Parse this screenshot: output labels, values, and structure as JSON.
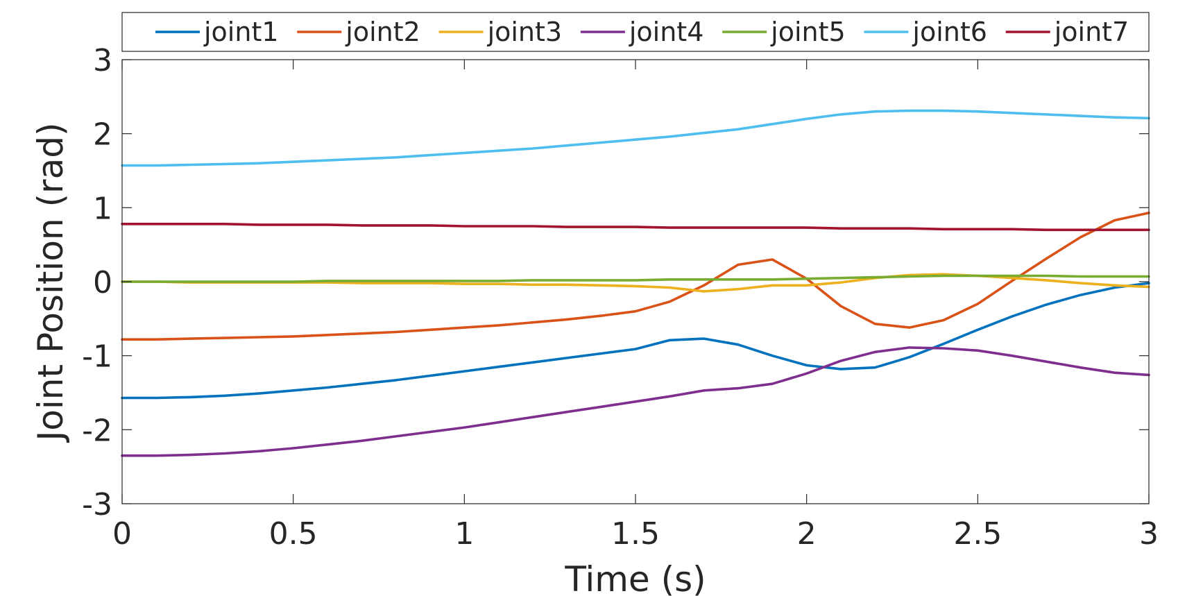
{
  "chart_data": {
    "type": "line",
    "title": "",
    "xlabel": "Time (s)",
    "ylabel": "Joint Position (rad)",
    "xlim": [
      0,
      3
    ],
    "ylim": [
      -3,
      3
    ],
    "xticks": [
      0,
      0.5,
      1,
      1.5,
      2,
      2.5,
      3
    ],
    "xtick_labels": [
      "0",
      "0.5",
      "1",
      "1.5",
      "2",
      "2.5",
      "3"
    ],
    "yticks": [
      -3,
      -2,
      -1,
      0,
      1,
      2,
      3
    ],
    "ytick_labels": [
      "-3",
      "-2",
      "-1",
      "0",
      "1",
      "2",
      "3"
    ],
    "grid": false,
    "legend_position": "top, horizontal, outside plot",
    "x": [
      0,
      0.1,
      0.2,
      0.3,
      0.4,
      0.5,
      0.6,
      0.7,
      0.8,
      0.9,
      1.0,
      1.1,
      1.2,
      1.3,
      1.4,
      1.5,
      1.6,
      1.7,
      1.8,
      1.9,
      2.0,
      2.1,
      2.2,
      2.3,
      2.4,
      2.5,
      2.6,
      2.7,
      2.8,
      2.9,
      3.0
    ],
    "series": [
      {
        "name": "joint1",
        "color": "#0072BD",
        "values": [
          -1.57,
          -1.57,
          -1.56,
          -1.54,
          -1.51,
          -1.47,
          -1.43,
          -1.38,
          -1.33,
          -1.27,
          -1.21,
          -1.15,
          -1.09,
          -1.03,
          -0.97,
          -0.91,
          -0.79,
          -0.77,
          -0.85,
          -1.0,
          -1.13,
          -1.18,
          -1.16,
          -1.02,
          -0.84,
          -0.65,
          -0.47,
          -0.31,
          -0.18,
          -0.08,
          -0.02
        ]
      },
      {
        "name": "joint2",
        "color": "#D95319",
        "values": [
          -0.78,
          -0.78,
          -0.77,
          -0.76,
          -0.75,
          -0.74,
          -0.72,
          -0.7,
          -0.68,
          -0.65,
          -0.62,
          -0.59,
          -0.55,
          -0.51,
          -0.46,
          -0.4,
          -0.27,
          -0.05,
          0.23,
          0.3,
          0.04,
          -0.33,
          -0.57,
          -0.62,
          -0.52,
          -0.3,
          0.01,
          0.31,
          0.6,
          0.83,
          0.93
        ]
      },
      {
        "name": "joint3",
        "color": "#EDB120",
        "values": [
          0.0,
          0.0,
          -0.01,
          -0.01,
          -0.01,
          -0.01,
          -0.01,
          -0.02,
          -0.02,
          -0.02,
          -0.03,
          -0.03,
          -0.04,
          -0.04,
          -0.05,
          -0.06,
          -0.08,
          -0.13,
          -0.1,
          -0.05,
          -0.05,
          -0.01,
          0.05,
          0.09,
          0.1,
          0.08,
          0.05,
          0.02,
          -0.02,
          -0.05,
          -0.07
        ]
      },
      {
        "name": "joint4",
        "color": "#7E2F8E",
        "values": [
          -2.35,
          -2.35,
          -2.34,
          -2.32,
          -2.29,
          -2.25,
          -2.2,
          -2.15,
          -2.09,
          -2.03,
          -1.97,
          -1.9,
          -1.83,
          -1.76,
          -1.69,
          -1.62,
          -1.55,
          -1.47,
          -1.44,
          -1.38,
          -1.24,
          -1.07,
          -0.95,
          -0.89,
          -0.9,
          -0.93,
          -1.0,
          -1.08,
          -1.16,
          -1.23,
          -1.26
        ]
      },
      {
        "name": "joint5",
        "color": "#77AC30",
        "values": [
          0.0,
          0.0,
          0.0,
          0.0,
          0.0,
          0.0,
          0.01,
          0.01,
          0.01,
          0.01,
          0.01,
          0.01,
          0.02,
          0.02,
          0.02,
          0.02,
          0.03,
          0.03,
          0.03,
          0.03,
          0.04,
          0.05,
          0.06,
          0.07,
          0.08,
          0.08,
          0.08,
          0.08,
          0.07,
          0.07,
          0.07
        ]
      },
      {
        "name": "joint6",
        "color": "#4DBEEE",
        "values": [
          1.57,
          1.57,
          1.58,
          1.59,
          1.6,
          1.62,
          1.64,
          1.66,
          1.68,
          1.71,
          1.74,
          1.77,
          1.8,
          1.84,
          1.88,
          1.92,
          1.96,
          2.01,
          2.06,
          2.13,
          2.2,
          2.26,
          2.3,
          2.31,
          2.31,
          2.3,
          2.28,
          2.26,
          2.24,
          2.22,
          2.21
        ]
      },
      {
        "name": "joint7",
        "color": "#A2142F",
        "values": [
          0.78,
          0.78,
          0.78,
          0.78,
          0.77,
          0.77,
          0.77,
          0.76,
          0.76,
          0.76,
          0.75,
          0.75,
          0.75,
          0.74,
          0.74,
          0.74,
          0.73,
          0.73,
          0.73,
          0.73,
          0.73,
          0.72,
          0.72,
          0.72,
          0.71,
          0.71,
          0.71,
          0.7,
          0.7,
          0.7,
          0.7
        ]
      }
    ]
  }
}
